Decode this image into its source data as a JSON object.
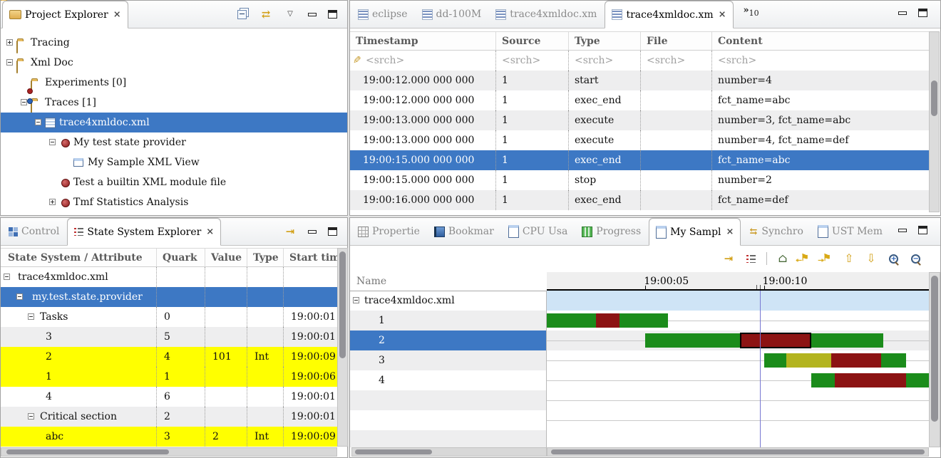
{
  "colors": {
    "selection": "#3d78c4",
    "row_alt": "#eeeeef",
    "highlight_yellow": "#ffff00",
    "state_green": "#1b8c1b",
    "state_red": "#8c1313",
    "state_olive": "#b3b41f",
    "trace_band": "#cfe4f6",
    "cursor": "#7878d2"
  },
  "project_explorer": {
    "tab": "Project Explorer",
    "close_glyph": "×",
    "toolbar": [
      "collapse-all-icon",
      "link-with-editor-icon",
      "view-menu-icon",
      "minimize-icon",
      "maximize-icon"
    ],
    "tree": [
      {
        "label": "Tracing",
        "level": 0,
        "exp": "plus",
        "icon": "folder"
      },
      {
        "label": "Xml Doc",
        "level": 0,
        "exp": "minus",
        "icon": "folder"
      },
      {
        "label": "Experiments [0]",
        "level": 1,
        "exp": null,
        "icon": "folder-experiments"
      },
      {
        "label": "Traces [1]",
        "level": 1,
        "exp": "minus",
        "icon": "folder-traces"
      },
      {
        "label": "trace4xmldoc.xml",
        "level": 2,
        "exp": "minus",
        "icon": "trace",
        "selected": true
      },
      {
        "label": "My test state provider",
        "level": 3,
        "exp": "minus",
        "icon": "analysis"
      },
      {
        "label": "My Sample XML View",
        "level": 4,
        "exp": null,
        "icon": "view"
      },
      {
        "label": "Test a builtin XML module file",
        "level": 3,
        "exp": null,
        "icon": "analysis"
      },
      {
        "label": "Tmf Statistics Analysis",
        "level": 3,
        "exp": "plus",
        "icon": "analysis"
      }
    ]
  },
  "events_table": {
    "tabs": [
      {
        "label": "eclipse",
        "icon": "events",
        "active": false
      },
      {
        "label": "dd-100M",
        "icon": "events",
        "active": false
      },
      {
        "label": "trace4xmldoc.xm",
        "icon": "events",
        "active": false
      },
      {
        "label": "trace4xmldoc.xm",
        "icon": "events",
        "active": true
      }
    ],
    "overflow_chevron": "»",
    "overflow_count": "10",
    "columns": [
      "Timestamp",
      "Source",
      "Type",
      "File",
      "Content"
    ],
    "search_placeholder": "<srch>",
    "rows": [
      {
        "timestamp": "19:00:12.000 000 000",
        "source": "1",
        "type": "start",
        "file": "",
        "content": "number=4"
      },
      {
        "timestamp": "19:00:12.000 000 000",
        "source": "1",
        "type": "exec_end",
        "file": "",
        "content": "fct_name=abc"
      },
      {
        "timestamp": "19:00:13.000 000 000",
        "source": "1",
        "type": "execute",
        "file": "",
        "content": "number=3, fct_name=abc"
      },
      {
        "timestamp": "19:00:13.000 000 000",
        "source": "1",
        "type": "execute",
        "file": "",
        "content": "number=4, fct_name=def"
      },
      {
        "timestamp": "19:00:15.000 000 000",
        "source": "1",
        "type": "exec_end",
        "file": "",
        "content": "fct_name=abc",
        "selected": true
      },
      {
        "timestamp": "19:00:15.000 000 000",
        "source": "1",
        "type": "stop",
        "file": "",
        "content": "number=2"
      },
      {
        "timestamp": "19:00:16.000 000 000",
        "source": "1",
        "type": "exec_end",
        "file": "",
        "content": "fct_name=def"
      }
    ]
  },
  "state_system": {
    "tabs": [
      {
        "label": "Control",
        "icon": "control",
        "active": false
      },
      {
        "label": "State System Explorer",
        "icon": "list",
        "active": true
      }
    ],
    "toolbar": [
      "align-views-icon",
      "minimize-icon",
      "maximize-icon"
    ],
    "columns": [
      "State System / Attribute",
      "Quark",
      "Value",
      "Type",
      "Start tim"
    ],
    "rows": [
      {
        "attr": "trace4xmldoc.xml",
        "level": 0,
        "exp": "minus",
        "quark": "",
        "value": "",
        "type": "",
        "start": "",
        "bg": "white"
      },
      {
        "attr": "my.test.state.provider",
        "level": 1,
        "exp": "minus",
        "quark": "",
        "value": "",
        "type": "",
        "start": "",
        "bg": "sel"
      },
      {
        "attr": "Tasks",
        "level": 2,
        "exp": "minus",
        "quark": "0",
        "value": "",
        "type": "",
        "start": "19:00:01",
        "bg": "white"
      },
      {
        "attr": "3",
        "level": 3,
        "exp": null,
        "quark": "5",
        "value": "",
        "type": "",
        "start": "19:00:01",
        "bg": "gray"
      },
      {
        "attr": "2",
        "level": 3,
        "exp": null,
        "quark": "4",
        "value": "101",
        "type": "Int",
        "start": "19:00:09",
        "bg": "yellow"
      },
      {
        "attr": "1",
        "level": 3,
        "exp": null,
        "quark": "1",
        "value": "",
        "type": "",
        "start": "19:00:06",
        "bg": "yellow"
      },
      {
        "attr": "4",
        "level": 3,
        "exp": null,
        "quark": "6",
        "value": "",
        "type": "",
        "start": "19:00:01",
        "bg": "white"
      },
      {
        "attr": "Critical section",
        "level": 2,
        "exp": "minus",
        "quark": "2",
        "value": "",
        "type": "",
        "start": "19:00:01",
        "bg": "gray"
      },
      {
        "attr": "abc",
        "level": 3,
        "exp": null,
        "quark": "3",
        "value": "2",
        "type": "Int",
        "start": "19:00:09",
        "bg": "yellow"
      }
    ]
  },
  "timegraph": {
    "tabs": [
      {
        "label": "Propertie",
        "icon": "table",
        "active": false
      },
      {
        "label": "Bookmar",
        "icon": "book",
        "active": false
      },
      {
        "label": "CPU Usa",
        "icon": "window",
        "active": false
      },
      {
        "label": "Progress",
        "icon": "progress",
        "active": false
      },
      {
        "label": "My Sampl",
        "icon": "window",
        "active": true
      },
      {
        "label": "Synchro",
        "icon": "sync",
        "active": false
      },
      {
        "label": "UST Mem",
        "icon": "window",
        "active": false
      }
    ],
    "toolbar": [
      "align-views-icon",
      "show-legend-icon",
      "home-icon",
      "select-prev-state-icon",
      "select-next-state-icon",
      "up-icon",
      "down-icon",
      "zoom-in-icon",
      "zoom-out-icon"
    ],
    "name_header": "Name"
  },
  "chart_data": {
    "type": "timegraph-gantt",
    "time_base": "19:00:00",
    "axis": {
      "t0": 0.84,
      "t1": 16.96,
      "ticks": [
        {
          "t": 5,
          "label": "19:00:05"
        },
        {
          "t": 10,
          "label": "19:00:10"
        }
      ],
      "cursor_t": 9.82
    },
    "rows": [
      {
        "name": "trace4xmldoc.xml",
        "level": 0,
        "exp": "minus",
        "band": "trace",
        "states": []
      },
      {
        "name": "1",
        "level": 1,
        "states": [
          [
            "green",
            0.84,
            2.92
          ],
          [
            "red",
            2.92,
            3.92
          ],
          [
            "green",
            3.92,
            5.95
          ]
        ]
      },
      {
        "name": "2",
        "level": 1,
        "selected": true,
        "states": [
          [
            "green",
            5.0,
            9.0
          ],
          [
            "red",
            9.0,
            12.0,
            "sel"
          ],
          [
            "green",
            12.0,
            15.05
          ]
        ]
      },
      {
        "name": "3",
        "level": 1,
        "states": [
          [
            "green",
            10.0,
            10.95
          ],
          [
            "olive",
            10.95,
            12.85
          ],
          [
            "red",
            12.85,
            14.95
          ],
          [
            "green",
            14.95,
            16.0
          ]
        ]
      },
      {
        "name": "4",
        "level": 1,
        "states": [
          [
            "green",
            12.0,
            13.0
          ],
          [
            "red",
            13.0,
            16.0
          ],
          [
            "green",
            16.0,
            17.1
          ]
        ]
      }
    ]
  }
}
